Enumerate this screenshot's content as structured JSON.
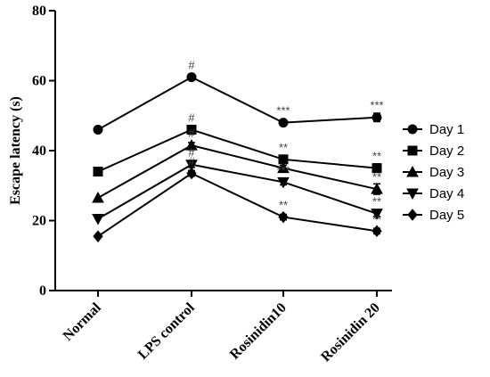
{
  "chart_data": {
    "type": "line",
    "ylabel": "Escape latency (s)",
    "xlabel": "",
    "ylim": [
      0,
      80
    ],
    "yticks": [
      0,
      20,
      40,
      60,
      80
    ],
    "categories": [
      "Normal",
      "LPS control",
      "Rosinidin10",
      "Rosinidin 20"
    ],
    "legend_position": "right",
    "series": [
      {
        "name": "Day 1",
        "marker": "circle",
        "values": [
          46,
          61,
          48,
          49.5
        ],
        "errors": [
          0,
          0.8,
          0.8,
          1.2
        ],
        "annotations": [
          "",
          "#",
          "***",
          "***"
        ]
      },
      {
        "name": "Day 2",
        "marker": "square",
        "values": [
          34,
          46,
          37.5,
          35
        ],
        "errors": [
          0,
          0.8,
          0.8,
          1.2
        ],
        "annotations": [
          "",
          "#",
          "**",
          "**"
        ]
      },
      {
        "name": "Day 3",
        "marker": "triangle",
        "values": [
          26.5,
          41.5,
          35,
          29
        ],
        "errors": [
          0,
          0.8,
          0.8,
          1.5
        ],
        "annotations": [
          "",
          "#",
          "",
          "**"
        ]
      },
      {
        "name": "Day 4",
        "marker": "triangle-down",
        "values": [
          20.5,
          36,
          31,
          22
        ],
        "errors": [
          0,
          0.8,
          0.8,
          0.8
        ],
        "annotations": [
          "",
          "#",
          "***",
          "**"
        ]
      },
      {
        "name": "Day 5",
        "marker": "diamond",
        "values": [
          15.5,
          33.5,
          21,
          17
        ],
        "errors": [
          0,
          0.8,
          0.8,
          0.8
        ],
        "annotations": [
          "",
          "#",
          "**",
          "**"
        ]
      }
    ]
  }
}
